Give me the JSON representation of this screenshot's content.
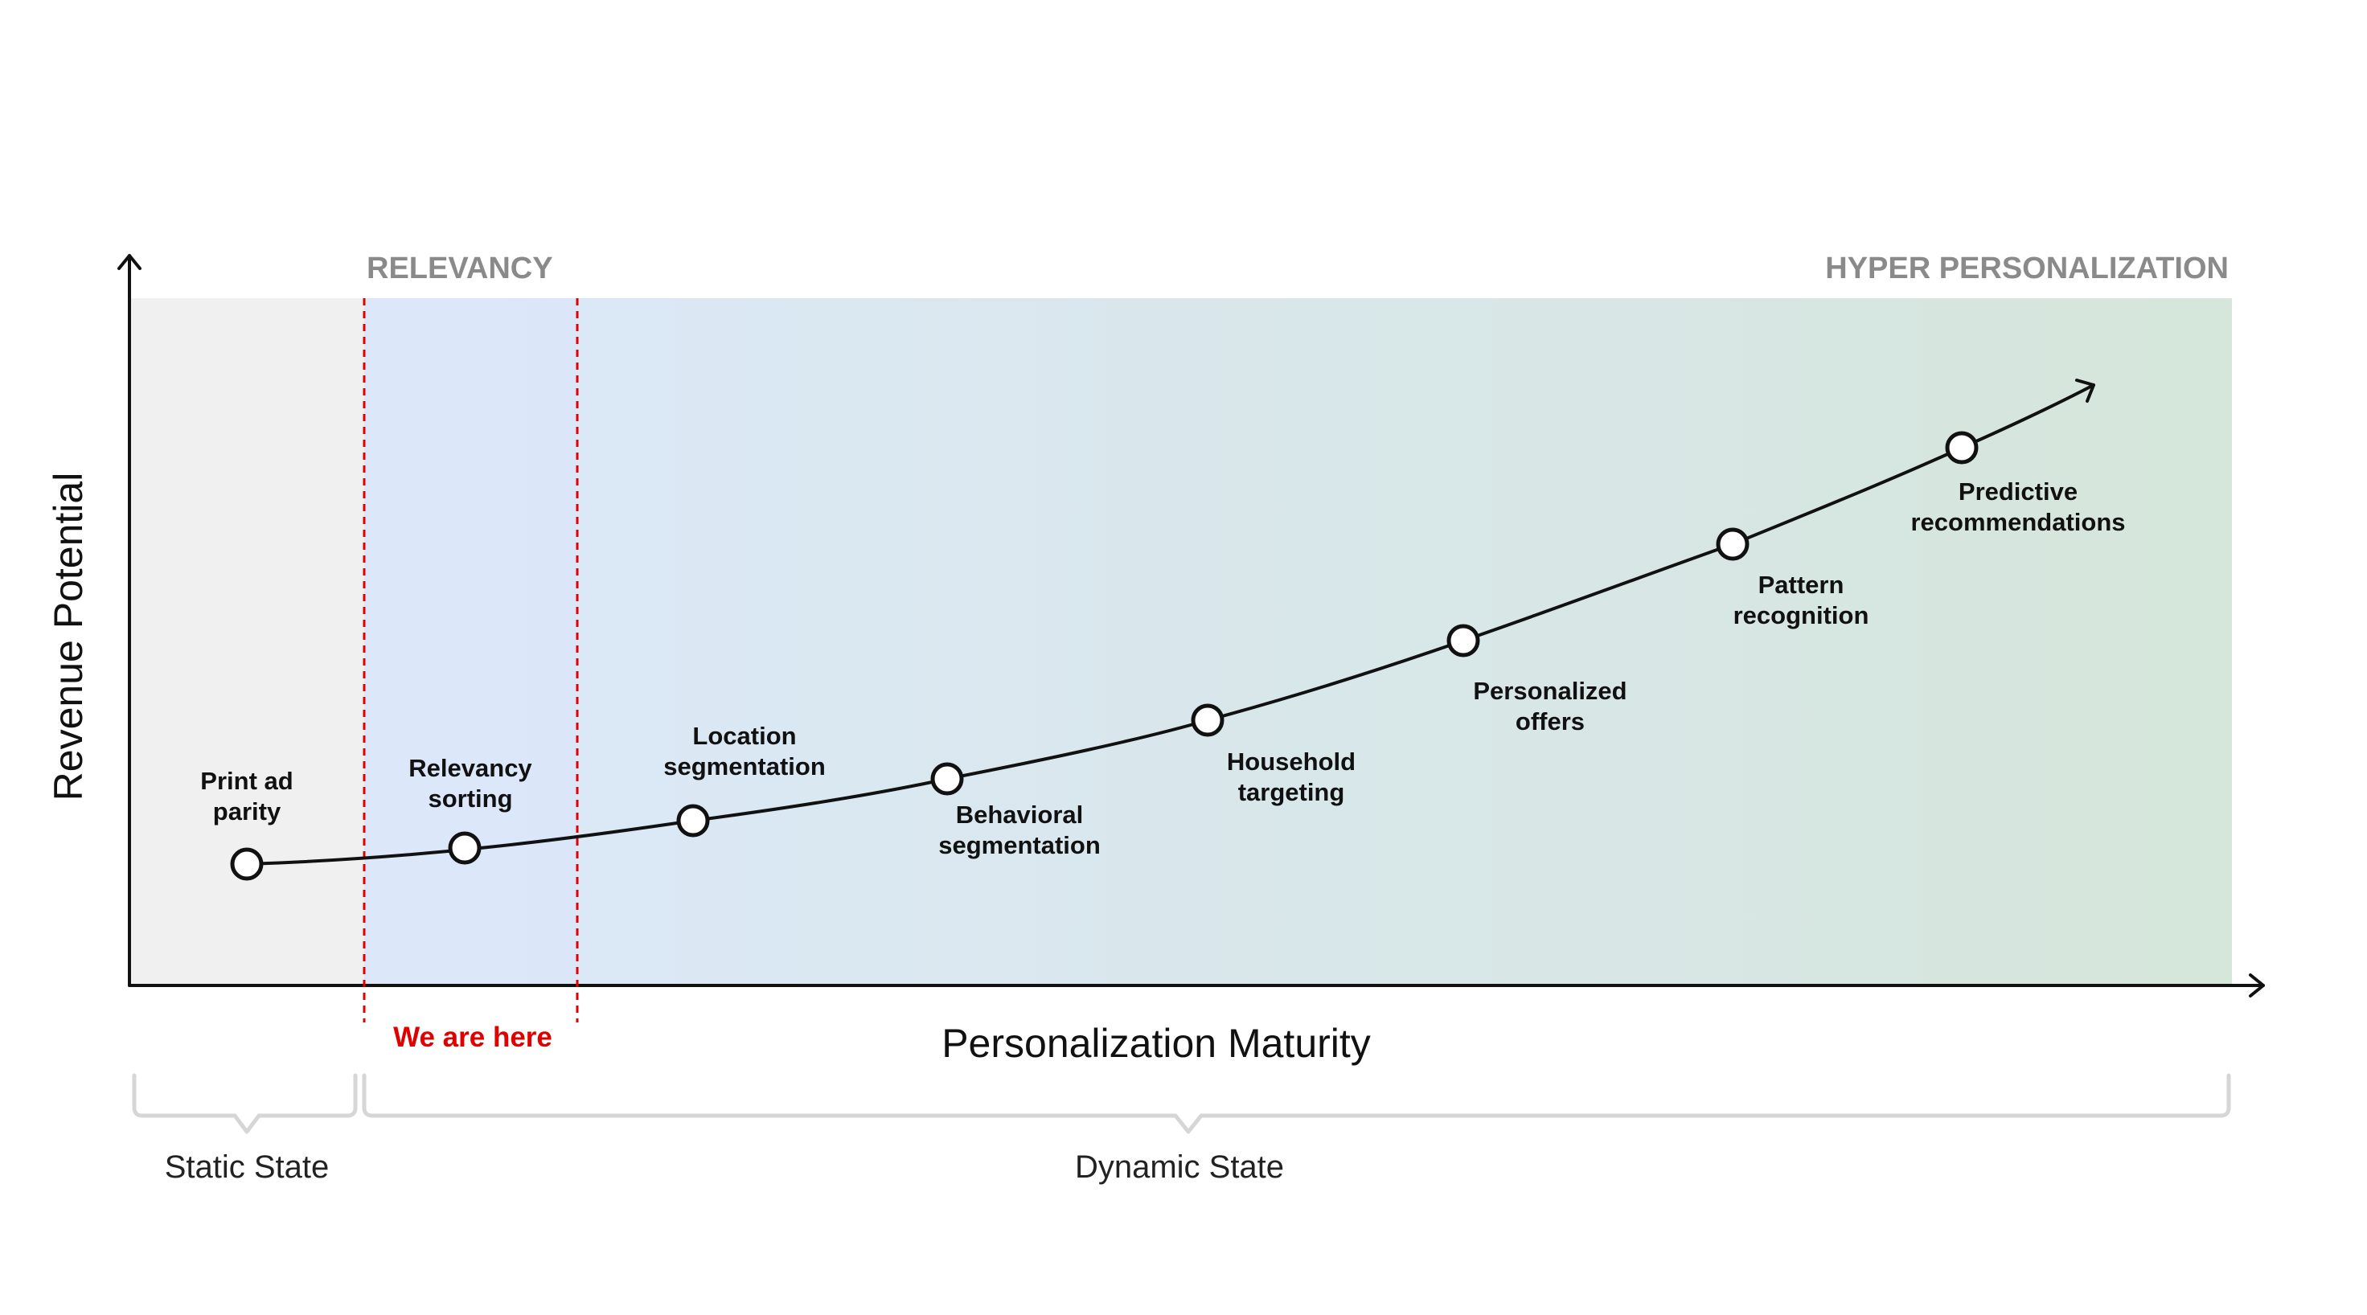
{
  "axes": {
    "x_title": "Personalization Maturity",
    "y_title": "Revenue Potential"
  },
  "zones": {
    "left": "RELEVANCY",
    "right": "HYPER PERSONALIZATION"
  },
  "marker": {
    "label": "We are here",
    "color": "#e00000"
  },
  "states": {
    "static": "Static State",
    "dynamic": "Dynamic State"
  },
  "stages": [
    {
      "lines": [
        "Print ad",
        "parity"
      ]
    },
    {
      "lines": [
        "Relevancy",
        "sorting"
      ]
    },
    {
      "lines": [
        "Location",
        "segmentation"
      ]
    },
    {
      "lines": [
        "Behavioral",
        "segmentation"
      ]
    },
    {
      "lines": [
        "Household",
        "targeting"
      ]
    },
    {
      "lines": [
        "Personalized",
        "offers"
      ]
    },
    {
      "lines": [
        "Pattern",
        "recognition"
      ]
    },
    {
      "lines": [
        "Predictive",
        "recommendations"
      ]
    }
  ],
  "colors": {
    "static_bg": "#f0f0f0",
    "gradient_start": "#dce8fa",
    "gradient_end": "#d5e6da",
    "axis": "#111111",
    "zone_label": "#8a8a8a",
    "brace": "#d6d6d6"
  }
}
